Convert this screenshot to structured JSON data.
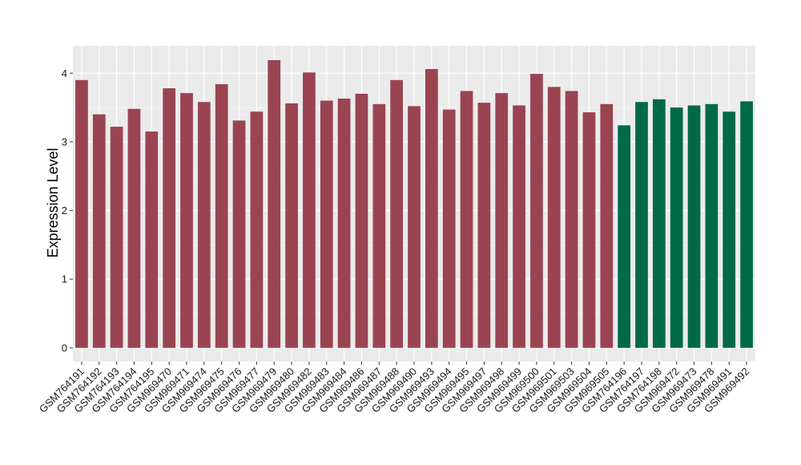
{
  "chart_data": {
    "type": "bar",
    "title": "",
    "xlabel": "",
    "ylabel": "Expression Level",
    "ylim": [
      -0.2,
      4.4
    ],
    "yticks": [
      0,
      1,
      2,
      3,
      4
    ],
    "grid": true,
    "legend": "none",
    "colors": {
      "panel_bg": "#ebebeb",
      "grid": "#ffffff",
      "group1": "#9a4452",
      "group2": "#006a47"
    },
    "categories": [
      "GSM764191",
      "GSM764192",
      "GSM764193",
      "GSM764194",
      "GSM764195",
      "GSM969470",
      "GSM969471",
      "GSM969474",
      "GSM969475",
      "GSM969476",
      "GSM969477",
      "GSM969479",
      "GSM969480",
      "GSM969482",
      "GSM969483",
      "GSM969484",
      "GSM969486",
      "GSM969487",
      "GSM969488",
      "GSM969490",
      "GSM969493",
      "GSM969494",
      "GSM969495",
      "GSM969497",
      "GSM969498",
      "GSM969499",
      "GSM969500",
      "GSM969501",
      "GSM969503",
      "GSM969504",
      "GSM969505",
      "GSM764196",
      "GSM764197",
      "GSM764198",
      "GSM969472",
      "GSM969473",
      "GSM969478",
      "GSM969491",
      "GSM969492"
    ],
    "values": [
      3.9,
      3.4,
      3.22,
      3.48,
      3.15,
      3.78,
      3.71,
      3.58,
      3.84,
      3.31,
      3.44,
      4.19,
      3.56,
      4.01,
      3.6,
      3.63,
      3.7,
      3.55,
      3.9,
      3.52,
      4.06,
      3.47,
      3.74,
      3.57,
      3.71,
      3.53,
      3.99,
      3.8,
      3.74,
      3.43,
      3.55,
      3.24,
      3.58,
      3.62,
      3.5,
      3.53,
      3.55,
      3.44,
      3.59
    ],
    "groups": [
      1,
      1,
      1,
      1,
      1,
      1,
      1,
      1,
      1,
      1,
      1,
      1,
      1,
      1,
      1,
      1,
      1,
      1,
      1,
      1,
      1,
      1,
      1,
      1,
      1,
      1,
      1,
      1,
      1,
      1,
      1,
      2,
      2,
      2,
      2,
      2,
      2,
      2,
      2
    ]
  }
}
